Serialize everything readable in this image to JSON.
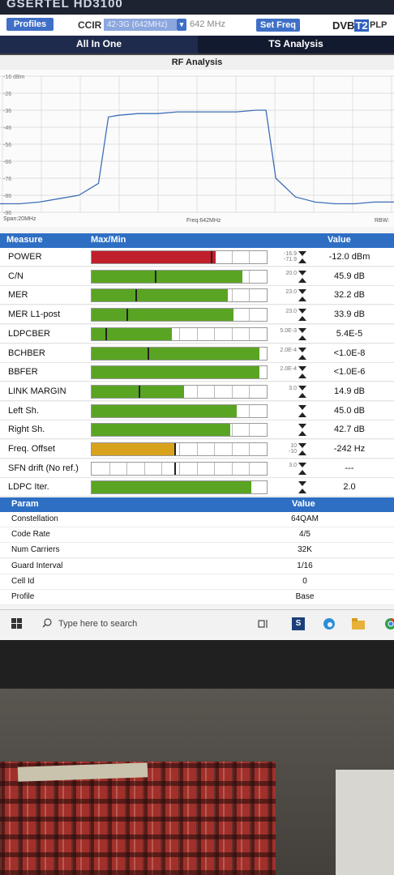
{
  "device": {
    "brand": "GSERTEL HD3100"
  },
  "toolbar": {
    "profiles_label": "Profiles",
    "mode_label": "CCIR",
    "channel_label": "42-3G (642MHz)",
    "freq_label": "642 MHz",
    "setfreq_label": "Set Freq",
    "dvb_label_a": "DVB",
    "dvb_label_b": "T2",
    "plp_label": "PLP",
    "tab_allinone": "All In One",
    "tab_tsanalysis": "TS Analysis"
  },
  "rf": {
    "title": "RF Analysis",
    "span_label": "Span:20MHz",
    "freq_label": "Freq:642MHz",
    "rbw_label": "RBW:",
    "y_ticks": [
      "-16 dBm",
      "-26",
      "-36",
      "-46",
      "-56",
      "-66",
      "-76",
      "-86",
      "-96"
    ]
  },
  "chart_data": {
    "type": "line",
    "title": "RF Analysis",
    "xlabel": "Freq:642MHz",
    "ylabel": "",
    "y_tick_labels": [
      "-16 dBm",
      "-26",
      "-36",
      "-46",
      "-56",
      "-66",
      "-76",
      "-86",
      "-96"
    ],
    "ylim": [
      -96,
      -16
    ],
    "x": [
      632,
      633,
      634,
      635,
      636,
      637,
      637.5,
      638,
      639,
      640,
      641,
      642,
      643,
      644,
      645,
      645.5,
      646,
      647,
      648,
      649,
      650,
      651,
      652
    ],
    "values": [
      -91,
      -91,
      -90,
      -88,
      -86,
      -79,
      -40,
      -39,
      -38,
      -38,
      -37,
      -37,
      -37,
      -37,
      -36,
      -36,
      -76,
      -87,
      -90,
      -91,
      -91,
      -90,
      -90
    ]
  },
  "measure": {
    "header": {
      "measure": "Measure",
      "maxmin": "Max/Min",
      "value": "Value"
    },
    "rows": [
      {
        "name": "POWER",
        "value": "-12.0 dBm",
        "thr": "-16.9\n-71.9",
        "fill": 0.71,
        "color": "#c01e2b",
        "mark": 0.68
      },
      {
        "name": "C/N",
        "value": "45.9 dB",
        "thr": "20.0",
        "fill": 0.86,
        "color": "#5aa423",
        "mark": 0.36
      },
      {
        "name": "MER",
        "value": "32.2 dB",
        "thr": "23.0",
        "fill": 0.78,
        "color": "#5aa423",
        "mark": 0.25
      },
      {
        "name": "MER L1-post",
        "value": "33.9 dB",
        "thr": "23.0",
        "fill": 0.81,
        "color": "#5aa423",
        "mark": 0.2
      },
      {
        "name": "LDPCBER",
        "value": "5.4E-5",
        "thr": "5.0E-3",
        "fill": 0.46,
        "color": "#5aa423",
        "mark": 0.08
      },
      {
        "name": "BCHBER",
        "value": "<1.0E-8",
        "thr": "2.0E-4",
        "fill": 0.96,
        "color": "#5aa423",
        "mark": 0.32
      },
      {
        "name": "BBFER",
        "value": "<1.0E-6",
        "thr": "2.0E-4",
        "fill": 0.96,
        "color": "#5aa423",
        "mark": 0.0
      },
      {
        "name": "LINK MARGIN",
        "value": "14.9 dB",
        "thr": "3.0",
        "fill": 0.53,
        "color": "#5aa423",
        "mark": 0.27
      },
      {
        "name": "Left Sh.",
        "value": "45.0 dB",
        "thr": "",
        "fill": 0.83,
        "color": "#5aa423",
        "mark": 0.0
      },
      {
        "name": "Right Sh.",
        "value": "42.7 dB",
        "thr": "",
        "fill": 0.79,
        "color": "#5aa423",
        "mark": 0.0
      },
      {
        "name": "Freq. Offset",
        "value": "-242 Hz",
        "thr": "10\n-10",
        "fill": 0.47,
        "color": "#d8a21d",
        "mark": 0.47
      },
      {
        "name": "SFN drift (No ref.)",
        "value": "---",
        "thr": "3.0",
        "fill": 0.0,
        "color": "#5aa423",
        "mark": 0.47
      },
      {
        "name": "LDPC Iter.",
        "value": "2.0",
        "thr": "",
        "fill": 0.91,
        "color": "#5aa423",
        "mark": 0.0
      }
    ]
  },
  "param": {
    "header": {
      "param": "Param",
      "value": "Value"
    },
    "rows": [
      {
        "name": "Constellation",
        "value": "64QAM"
      },
      {
        "name": "Code Rate",
        "value": "4/5"
      },
      {
        "name": "Num Carriers",
        "value": "32K"
      },
      {
        "name": "Guard Interval",
        "value": "1/16"
      },
      {
        "name": "Cell Id",
        "value": "0"
      },
      {
        "name": "Profile",
        "value": "Base"
      }
    ]
  },
  "taskbar": {
    "search_placeholder": "Type here to search",
    "icons": [
      "windows-icon",
      "search-icon",
      "task-view-icon",
      "app-s-icon",
      "edge-icon",
      "file-explorer-icon",
      "chrome-icon"
    ]
  }
}
